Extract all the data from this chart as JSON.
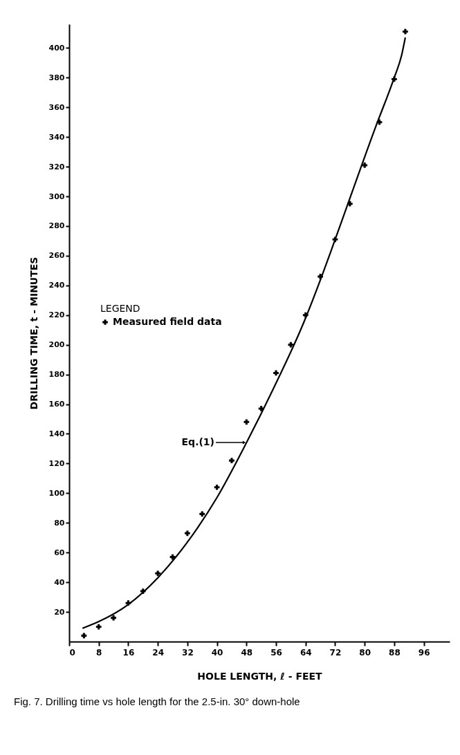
{
  "chart_data": {
    "type": "scatter",
    "xlabel": "HOLE LENGTH, ℓ - FEET",
    "ylabel": "DRILLING TIME, t - MINUTES",
    "legend_title": "LEGEND",
    "legend": "top left",
    "marker": "cross",
    "grid": false,
    "xlim": [
      0,
      103
    ],
    "xticks": [
      0,
      8,
      16,
      24,
      32,
      40,
      48,
      56,
      64,
      72,
      80,
      88,
      96
    ],
    "ylim": [
      0,
      416
    ],
    "yticks": [
      20,
      40,
      60,
      80,
      100,
      120,
      140,
      160,
      180,
      200,
      220,
      240,
      260,
      280,
      300,
      320,
      340,
      360,
      380,
      400
    ],
    "annotations": [
      "Eq.(1)",
      "Fig. 7. Drilling time vs hole length for the 2.5-in. 30° down-hole"
    ],
    "series": [
      {
        "name": "Measured field data",
        "color": "#000000",
        "x": [
          4,
          8,
          12,
          16,
          20,
          24,
          28,
          32,
          36,
          40,
          44,
          48,
          52,
          56,
          60,
          64,
          68,
          72,
          76,
          80,
          84,
          88,
          91
        ],
        "values": [
          4,
          10,
          16,
          26,
          34,
          46,
          57,
          73,
          86,
          104,
          122,
          148,
          157,
          181,
          200,
          220,
          246,
          271,
          295,
          321,
          350,
          379,
          411
        ]
      },
      {
        "type": "line",
        "color": "#000000",
        "line_style": "solid",
        "marker": "none",
        "x": [
          3.6,
          8,
          16,
          24,
          32,
          40,
          48,
          55,
          63.5,
          68.5,
          71,
          83,
          88,
          90,
          91
        ],
        "values": [
          9,
          13.5,
          25,
          43,
          67,
          97,
          134,
          169,
          215,
          247,
          264,
          347,
          380,
          395,
          407
        ]
      }
    ]
  }
}
